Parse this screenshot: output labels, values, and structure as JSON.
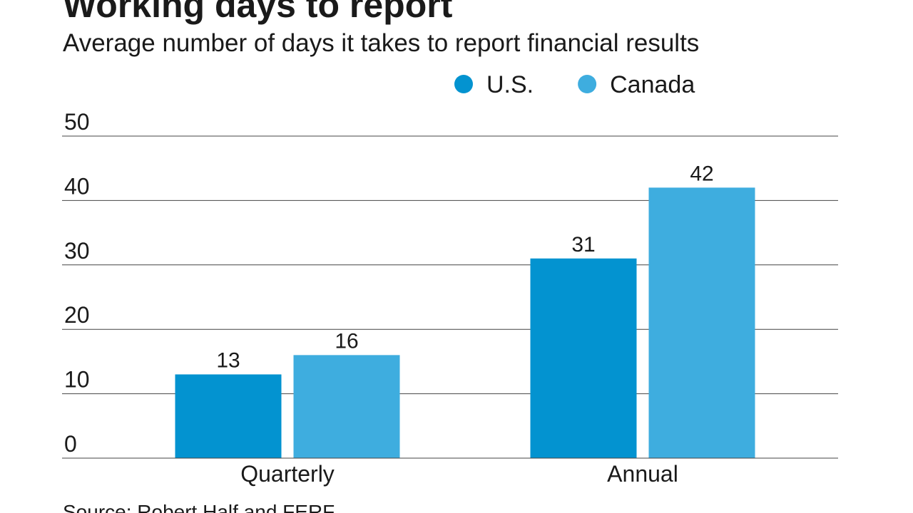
{
  "chart_data": {
    "type": "bar",
    "title": "Working days to report",
    "subtitle": "Average number of days it takes to report financial results",
    "categories": [
      "Quarterly",
      "Annual"
    ],
    "series": [
      {
        "name": "U.S.",
        "color": "#0393d0",
        "values": [
          13,
          31
        ]
      },
      {
        "name": "Canada",
        "color": "#3eaddf",
        "values": [
          16,
          42
        ]
      }
    ],
    "ylim": [
      0,
      50
    ],
    "yticks": [
      0,
      10,
      20,
      30,
      40,
      50
    ],
    "grid": true,
    "source": "Source: Robert Half and FERF"
  }
}
